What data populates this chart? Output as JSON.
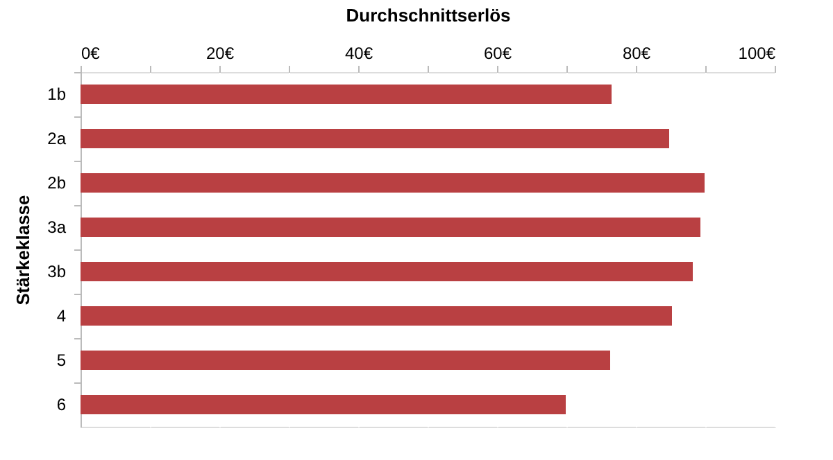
{
  "chart_data": {
    "type": "bar",
    "orientation": "horizontal",
    "xlabel": "Durchschnittserlös",
    "ylabel": "Stärkeklasse",
    "categories": [
      "1b",
      "2a",
      "2b",
      "3a",
      "3b",
      "4",
      "5",
      "6"
    ],
    "values": [
      76.5,
      84.8,
      89.9,
      89.3,
      88.2,
      85.2,
      76.3,
      69.9
    ],
    "color": "#b94042",
    "xlim": [
      0,
      100
    ],
    "xticks": [
      {
        "value": 0,
        "label": "0€"
      },
      {
        "value": 10,
        "label": null
      },
      {
        "value": 20,
        "label": "20€"
      },
      {
        "value": 30,
        "label": null
      },
      {
        "value": 40,
        "label": "40€"
      },
      {
        "value": 50,
        "label": null
      },
      {
        "value": 60,
        "label": "60€"
      },
      {
        "value": 70,
        "label": null
      },
      {
        "value": 80,
        "label": "80€"
      },
      {
        "value": 90,
        "label": null
      },
      {
        "value": 100,
        "label": "100€"
      }
    ],
    "grid": true
  }
}
